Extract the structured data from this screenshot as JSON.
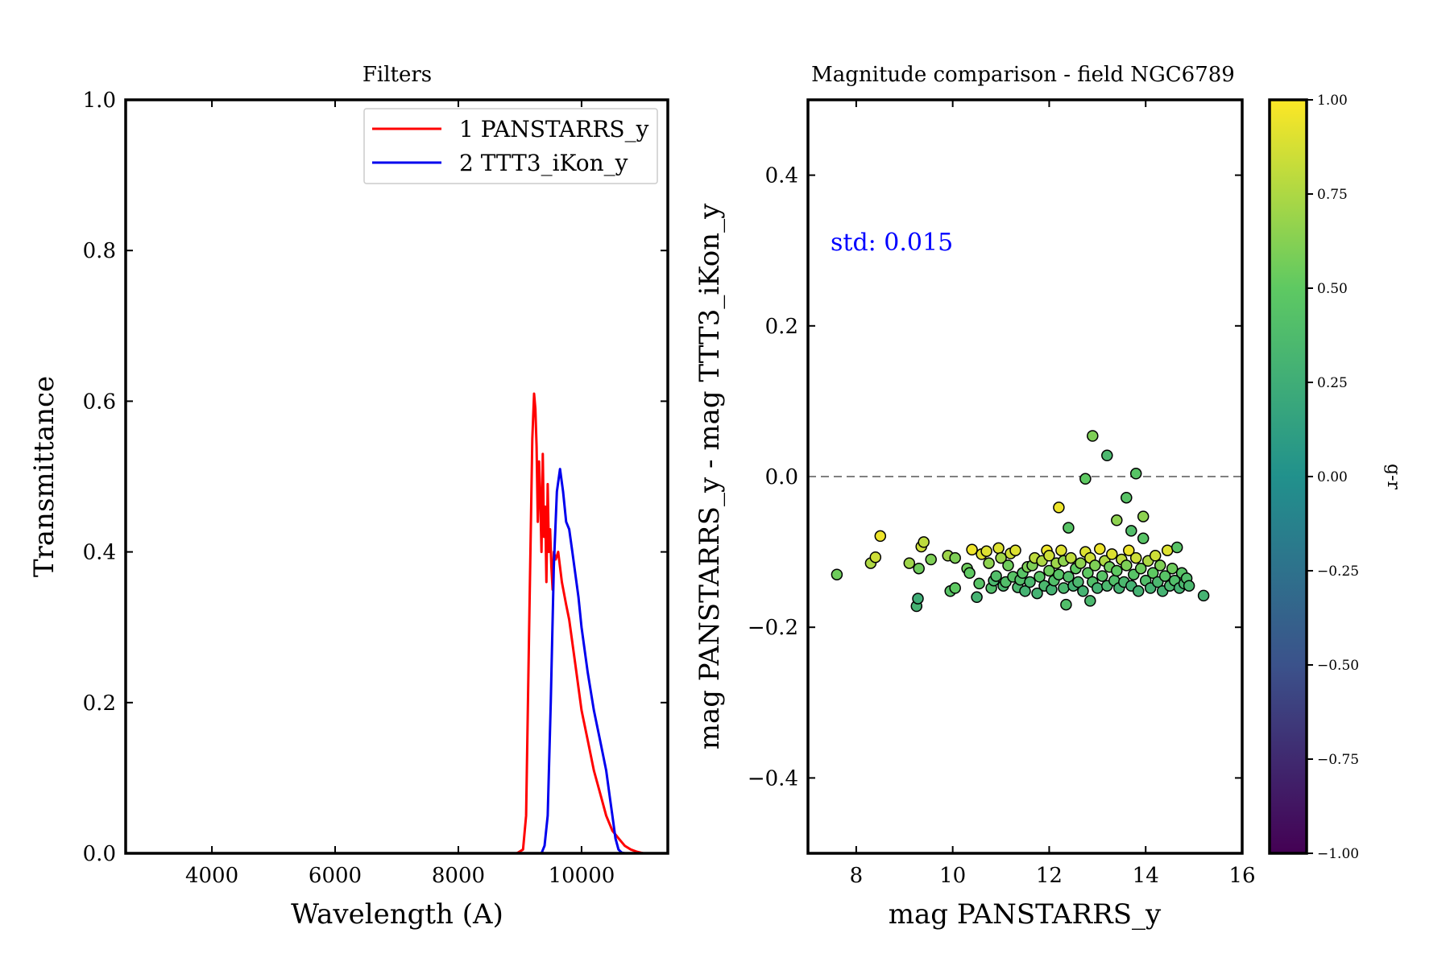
{
  "colors": {
    "panstarrs": "#ff0000",
    "ttt3": "#0000ee",
    "std_text": "#0000ff",
    "zero_line": "#808080",
    "colormap": [
      "#440154",
      "#3b528b",
      "#21918c",
      "#5ec962",
      "#fde725"
    ]
  },
  "chart_data": [
    {
      "type": "line",
      "title": "Filters",
      "xlabel": "Wavelength (A)",
      "ylabel": "Transmittance",
      "xlim": [
        2600,
        11400
      ],
      "ylim": [
        0,
        1.0
      ],
      "xticks": [
        "4000",
        "6000",
        "8000",
        "10000"
      ],
      "xtick_values": [
        4000,
        6000,
        8000,
        10000
      ],
      "yticks": [
        "0.0",
        "0.2",
        "0.4",
        "0.6",
        "0.8",
        "1.0"
      ],
      "ytick_values": [
        0,
        0.2,
        0.4,
        0.6,
        0.8,
        1.0
      ],
      "legend_position": "top-right",
      "series": [
        {
          "name": "1 PANSTARRS_y",
          "color": "#ff0000",
          "x": [
            8950,
            9050,
            9100,
            9150,
            9200,
            9230,
            9250,
            9270,
            9290,
            9310,
            9330,
            9350,
            9370,
            9390,
            9410,
            9430,
            9450,
            9470,
            9490,
            9510,
            9530,
            9550,
            9580,
            9620,
            9680,
            9750,
            9800,
            9900,
            10000,
            10100,
            10200,
            10300,
            10400,
            10500,
            10600,
            10700,
            10800,
            10900,
            11000
          ],
          "y": [
            0.0,
            0.005,
            0.05,
            0.3,
            0.55,
            0.61,
            0.59,
            0.54,
            0.44,
            0.52,
            0.47,
            0.4,
            0.53,
            0.42,
            0.46,
            0.36,
            0.49,
            0.4,
            0.43,
            0.38,
            0.35,
            0.4,
            0.39,
            0.4,
            0.36,
            0.33,
            0.31,
            0.25,
            0.19,
            0.15,
            0.11,
            0.08,
            0.05,
            0.03,
            0.02,
            0.01,
            0.005,
            0.002,
            0.0
          ]
        },
        {
          "name": "2 TTT3_iKon_y",
          "color": "#0000ee",
          "x": [
            9350,
            9400,
            9450,
            9500,
            9550,
            9600,
            9650,
            9700,
            9750,
            9800,
            9850,
            9900,
            9950,
            10000,
            10100,
            10200,
            10300,
            10400,
            10450,
            10500,
            10550,
            10600,
            10650,
            10700
          ],
          "y": [
            0.0,
            0.01,
            0.05,
            0.2,
            0.38,
            0.48,
            0.51,
            0.48,
            0.44,
            0.43,
            0.4,
            0.37,
            0.34,
            0.3,
            0.24,
            0.19,
            0.15,
            0.11,
            0.08,
            0.05,
            0.02,
            0.005,
            0.001,
            0.0
          ]
        }
      ]
    },
    {
      "type": "scatter",
      "title": "Magnitude comparison - field NGC6789",
      "xlabel": "mag PANSTARRS_y",
      "ylabel": "mag PANSTARRS_y - mag TTT3_iKon_y",
      "xlim": [
        7,
        16
      ],
      "ylim": [
        -0.5,
        0.5
      ],
      "xticks": [
        "8",
        "10",
        "12",
        "14",
        "16"
      ],
      "xtick_values": [
        8,
        10,
        12,
        14,
        16
      ],
      "yticks": [
        "−0.4",
        "−0.2",
        "0.0",
        "0.2",
        "0.4"
      ],
      "ytick_values": [
        -0.4,
        -0.2,
        0,
        0.2,
        0.4
      ],
      "annotation": "std: 0.015",
      "reference_line_y": 0,
      "colorbar": {
        "label": "g-r",
        "range": [
          -1.0,
          1.0
        ],
        "ticks": [
          "1.00",
          "0.75",
          "0.50",
          "0.25",
          "0.00",
          "−0.25",
          "−0.50",
          "−0.75",
          "−1.00"
        ],
        "tick_values": [
          1.0,
          0.75,
          0.5,
          0.25,
          0.0,
          -0.25,
          -0.5,
          -0.75,
          -1.0
        ]
      },
      "points": [
        [
          7.6,
          -0.13,
          0.55
        ],
        [
          8.3,
          -0.115,
          0.75
        ],
        [
          8.4,
          -0.107,
          0.85
        ],
        [
          8.5,
          -0.079,
          0.95
        ],
        [
          9.1,
          -0.115,
          0.7
        ],
        [
          9.25,
          -0.172,
          0.3
        ],
        [
          9.28,
          -0.162,
          0.25
        ],
        [
          9.3,
          -0.122,
          0.55
        ],
        [
          9.35,
          -0.093,
          0.85
        ],
        [
          9.4,
          -0.087,
          0.8
        ],
        [
          9.55,
          -0.11,
          0.6
        ],
        [
          9.9,
          -0.105,
          0.7
        ],
        [
          9.95,
          -0.152,
          0.45
        ],
        [
          10.05,
          -0.148,
          0.5
        ],
        [
          10.05,
          -0.108,
          0.6
        ],
        [
          10.3,
          -0.122,
          0.55
        ],
        [
          10.35,
          -0.128,
          0.5
        ],
        [
          10.4,
          -0.097,
          0.95
        ],
        [
          10.5,
          -0.16,
          0.3
        ],
        [
          10.55,
          -0.142,
          0.45
        ],
        [
          10.6,
          -0.103,
          0.9
        ],
        [
          10.7,
          -0.099,
          0.9
        ],
        [
          10.75,
          -0.115,
          0.65
        ],
        [
          10.8,
          -0.148,
          0.4
        ],
        [
          10.85,
          -0.138,
          0.35
        ],
        [
          10.9,
          -0.132,
          0.4
        ],
        [
          10.95,
          -0.095,
          0.9
        ],
        [
          11.0,
          -0.108,
          0.7
        ],
        [
          11.05,
          -0.145,
          0.35
        ],
        [
          11.1,
          -0.14,
          0.4
        ],
        [
          11.15,
          -0.118,
          0.55
        ],
        [
          11.2,
          -0.102,
          0.85
        ],
        [
          11.25,
          -0.133,
          0.45
        ],
        [
          11.3,
          -0.098,
          0.9
        ],
        [
          11.35,
          -0.147,
          0.35
        ],
        [
          11.4,
          -0.137,
          0.4
        ],
        [
          11.45,
          -0.128,
          0.45
        ],
        [
          11.5,
          -0.152,
          0.3
        ],
        [
          11.55,
          -0.12,
          0.6
        ],
        [
          11.6,
          -0.14,
          0.35
        ],
        [
          11.65,
          -0.118,
          0.6
        ],
        [
          11.7,
          -0.108,
          0.8
        ],
        [
          11.75,
          -0.155,
          0.3
        ],
        [
          11.8,
          -0.133,
          0.45
        ],
        [
          11.85,
          -0.112,
          0.75
        ],
        [
          11.9,
          -0.145,
          0.35
        ],
        [
          11.95,
          -0.098,
          0.95
        ],
        [
          12.0,
          -0.125,
          0.55
        ],
        [
          12.0,
          -0.105,
          0.85
        ],
        [
          12.05,
          -0.15,
          0.3
        ],
        [
          12.1,
          -0.138,
          0.4
        ],
        [
          12.15,
          -0.115,
          0.7
        ],
        [
          12.2,
          -0.041,
          0.95
        ],
        [
          12.2,
          -0.13,
          0.45
        ],
        [
          12.25,
          -0.098,
          0.9
        ],
        [
          12.3,
          -0.148,
          0.35
        ],
        [
          12.3,
          -0.112,
          0.65
        ],
        [
          12.35,
          -0.17,
          0.4
        ],
        [
          12.4,
          -0.068,
          0.45
        ],
        [
          12.4,
          -0.133,
          0.4
        ],
        [
          12.45,
          -0.108,
          0.8
        ],
        [
          12.5,
          -0.145,
          0.3
        ],
        [
          12.55,
          -0.122,
          0.5
        ],
        [
          12.6,
          -0.14,
          0.35
        ],
        [
          12.65,
          -0.115,
          0.65
        ],
        [
          12.7,
          -0.152,
          0.3
        ],
        [
          12.75,
          -0.003,
          0.5
        ],
        [
          12.75,
          -0.1,
          0.9
        ],
        [
          12.8,
          -0.128,
          0.5
        ],
        [
          12.85,
          -0.165,
          0.35
        ],
        [
          12.85,
          -0.108,
          0.85
        ],
        [
          12.9,
          0.054,
          0.6
        ],
        [
          12.9,
          -0.14,
          0.4
        ],
        [
          12.95,
          -0.118,
          0.6
        ],
        [
          13.0,
          -0.148,
          0.3
        ],
        [
          13.05,
          -0.096,
          0.95
        ],
        [
          13.1,
          -0.132,
          0.45
        ],
        [
          13.15,
          -0.112,
          0.75
        ],
        [
          13.2,
          0.028,
          0.35
        ],
        [
          13.2,
          -0.145,
          0.35
        ],
        [
          13.25,
          -0.12,
          0.55
        ],
        [
          13.3,
          -0.103,
          0.9
        ],
        [
          13.35,
          -0.138,
          0.4
        ],
        [
          13.4,
          -0.058,
          0.65
        ],
        [
          13.4,
          -0.125,
          0.5
        ],
        [
          13.45,
          -0.148,
          0.3
        ],
        [
          13.5,
          -0.11,
          0.8
        ],
        [
          13.55,
          -0.14,
          0.35
        ],
        [
          13.6,
          -0.028,
          0.45
        ],
        [
          13.6,
          -0.118,
          0.6
        ],
        [
          13.65,
          -0.098,
          0.95
        ],
        [
          13.7,
          -0.072,
          0.4
        ],
        [
          13.7,
          -0.145,
          0.3
        ],
        [
          13.75,
          -0.13,
          0.45
        ],
        [
          13.8,
          0.004,
          0.45
        ],
        [
          13.8,
          -0.108,
          0.85
        ],
        [
          13.85,
          -0.152,
          0.3
        ],
        [
          13.9,
          -0.122,
          0.55
        ],
        [
          13.95,
          -0.053,
          0.65
        ],
        [
          13.95,
          -0.082,
          0.45
        ],
        [
          14.0,
          -0.138,
          0.4
        ],
        [
          14.05,
          -0.112,
          0.75
        ],
        [
          14.1,
          -0.148,
          0.3
        ],
        [
          14.15,
          -0.128,
          0.5
        ],
        [
          14.2,
          -0.105,
          0.85
        ],
        [
          14.25,
          -0.14,
          0.35
        ],
        [
          14.3,
          -0.118,
          0.6
        ],
        [
          14.35,
          -0.152,
          0.3
        ],
        [
          14.4,
          -0.132,
          0.45
        ],
        [
          14.45,
          -0.098,
          0.9
        ],
        [
          14.5,
          -0.145,
          0.35
        ],
        [
          14.55,
          -0.122,
          0.55
        ],
        [
          14.6,
          -0.138,
          0.4
        ],
        [
          14.65,
          -0.094,
          0.45
        ],
        [
          14.7,
          -0.148,
          0.3
        ],
        [
          14.75,
          -0.128,
          0.45
        ],
        [
          14.8,
          -0.142,
          0.35
        ],
        [
          14.85,
          -0.135,
          0.4
        ],
        [
          14.9,
          -0.145,
          0.35
        ],
        [
          15.2,
          -0.158,
          0.3
        ]
      ]
    }
  ]
}
